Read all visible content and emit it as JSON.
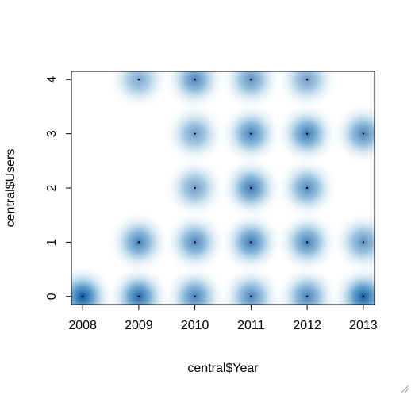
{
  "chart_data": {
    "type": "heatmap",
    "subtype": "smoothScatter",
    "title": "",
    "xlabel": "central$Year",
    "ylabel": "central$Users",
    "xlim": [
      2007.8,
      2013.2
    ],
    "ylim": [
      -0.15,
      4.15
    ],
    "x_ticks": [
      2008,
      2009,
      2010,
      2011,
      2012,
      2013
    ],
    "x_tick_labels": [
      "2008",
      "2009",
      "2010",
      "2011",
      "2012",
      "2013"
    ],
    "y_ticks": [
      0,
      1,
      2,
      3,
      4
    ],
    "y_tick_labels": [
      "0",
      "1",
      "2",
      "3",
      "4"
    ],
    "grid": false,
    "color_low": "#ffffff",
    "color_high": "#08519c",
    "points": [
      {
        "x": 2008,
        "y": 0,
        "density": 1.0
      },
      {
        "x": 2009,
        "y": 0,
        "density": 0.85
      },
      {
        "x": 2010,
        "y": 0,
        "density": 0.65
      },
      {
        "x": 2011,
        "y": 0,
        "density": 0.6
      },
      {
        "x": 2012,
        "y": 0,
        "density": 0.65
      },
      {
        "x": 2013,
        "y": 0,
        "density": 0.95
      },
      {
        "x": 2009,
        "y": 1,
        "density": 0.65
      },
      {
        "x": 2010,
        "y": 1,
        "density": 0.6
      },
      {
        "x": 2011,
        "y": 1,
        "density": 0.7
      },
      {
        "x": 2012,
        "y": 1,
        "density": 0.65
      },
      {
        "x": 2013,
        "y": 1,
        "density": 0.5
      },
      {
        "x": 2010,
        "y": 2,
        "density": 0.4
      },
      {
        "x": 2011,
        "y": 2,
        "density": 0.7
      },
      {
        "x": 2012,
        "y": 2,
        "density": 0.55
      },
      {
        "x": 2010,
        "y": 3,
        "density": 0.4
      },
      {
        "x": 2011,
        "y": 3,
        "density": 0.65
      },
      {
        "x": 2012,
        "y": 3,
        "density": 0.7
      },
      {
        "x": 2013,
        "y": 3,
        "density": 0.6
      },
      {
        "x": 2009,
        "y": 4,
        "density": 0.35
      },
      {
        "x": 2010,
        "y": 4,
        "density": 0.6
      },
      {
        "x": 2011,
        "y": 4,
        "density": 0.5
      },
      {
        "x": 2012,
        "y": 4,
        "density": 0.4
      }
    ]
  }
}
